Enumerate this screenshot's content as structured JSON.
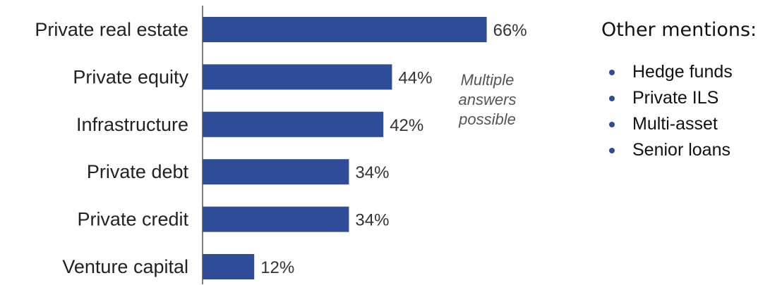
{
  "chart_data": {
    "type": "bar",
    "orientation": "horizontal",
    "categories": [
      "Private real estate",
      "Private equity",
      "Infrastructure",
      "Private debt",
      "Private credit",
      "Venture capital"
    ],
    "values": [
      66,
      44,
      42,
      34,
      34,
      12
    ],
    "value_labels": [
      "66%",
      "44%",
      "42%",
      "34%",
      "34%",
      "12%"
    ],
    "unit": "%",
    "xlim": [
      0,
      100
    ],
    "grid": false,
    "bar_color": "#2e4c98",
    "annotation": [
      "Multiple",
      "answers",
      "possible"
    ]
  },
  "side_panel": {
    "title": "Other mentions:",
    "items": [
      "Hedge funds",
      "Private ILS",
      "Multi-asset",
      "Senior loans"
    ],
    "bullet_color": "#2e4c98"
  }
}
